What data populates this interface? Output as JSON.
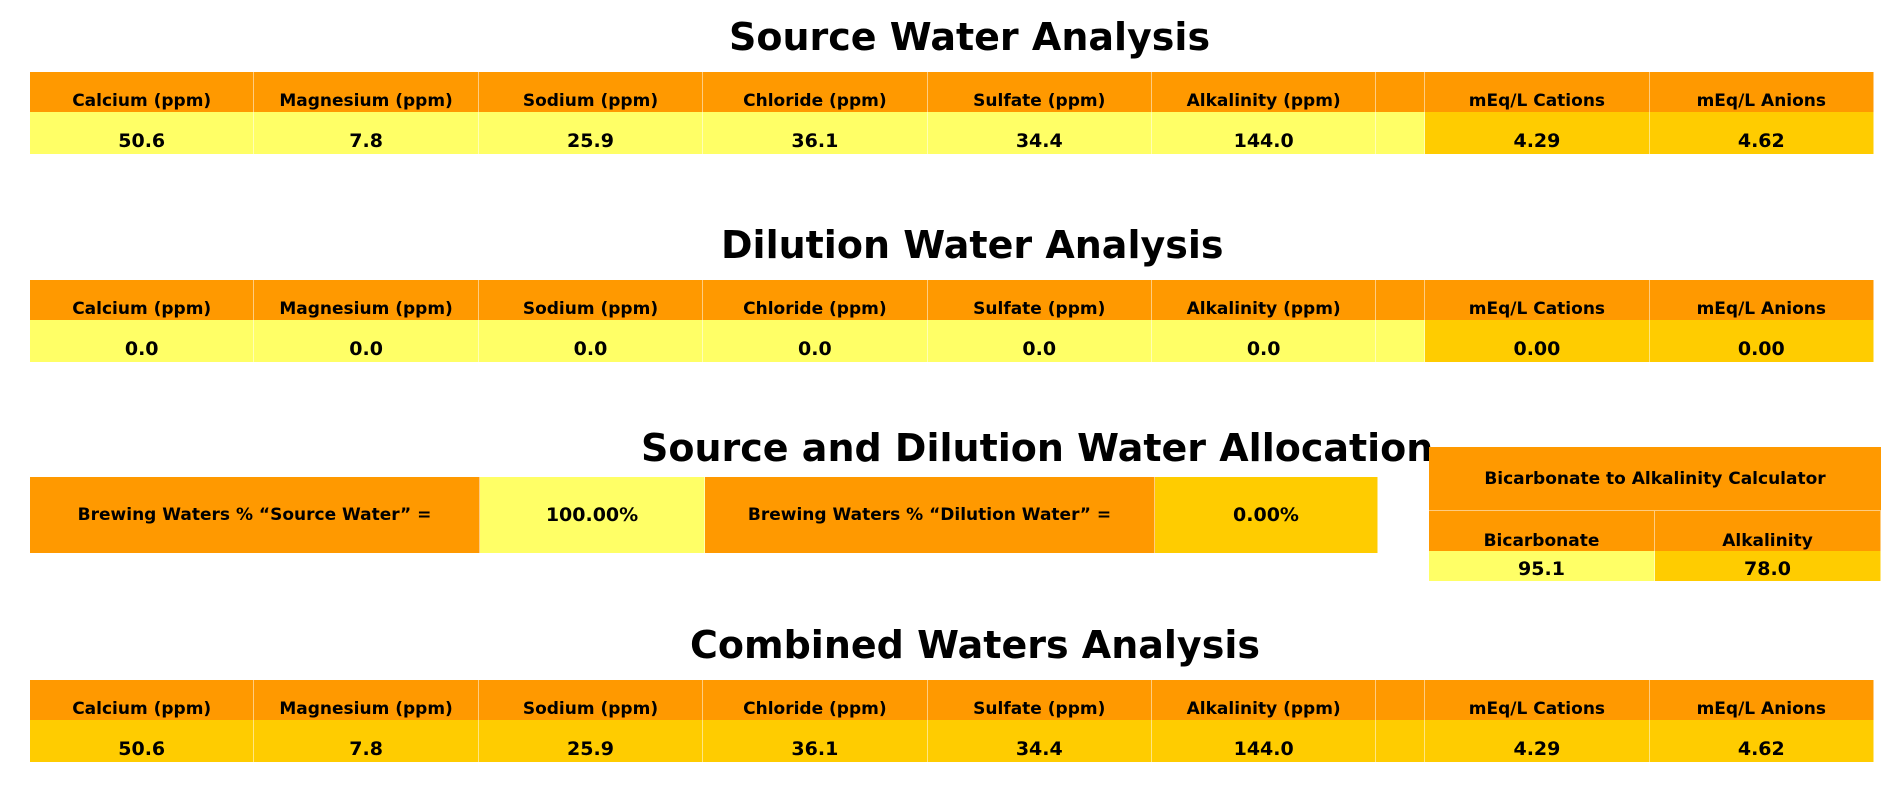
{
  "source": {
    "title": "Source Water Analysis",
    "headers": [
      "Calcium (ppm)",
      "Magnesium (ppm)",
      "Sodium (ppm)",
      "Chloride (ppm)",
      "Sulfate (ppm)",
      "Alkalinity (ppm)",
      "",
      "mEq/L Cations",
      "mEq/L Anions"
    ],
    "values": [
      "50.6",
      "7.8",
      "25.9",
      "36.1",
      "34.4",
      "144.0",
      "",
      "4.29",
      "4.62"
    ]
  },
  "dilution": {
    "title": "Dilution Water Analysis",
    "headers": [
      "Calcium (ppm)",
      "Magnesium (ppm)",
      "Sodium (ppm)",
      "Chloride (ppm)",
      "Sulfate (ppm)",
      "Alkalinity (ppm)",
      "",
      "mEq/L Cations",
      "mEq/L Anions"
    ],
    "values": [
      "0.0",
      "0.0",
      "0.0",
      "0.0",
      "0.0",
      "0.0",
      "",
      "0.00",
      "0.00"
    ]
  },
  "allocation": {
    "title": "Source and Dilution Water Allocation",
    "source_label": "Brewing Waters % “Source Water” =",
    "source_value": "100.00%",
    "dilution_label": "Brewing Waters % “Dilution Water” =",
    "dilution_value": "0.00%"
  },
  "calculator": {
    "title": "Bicarbonate to Alkalinity Calculator",
    "headers": [
      "Bicarbonate",
      "Alkalinity"
    ],
    "values": [
      "95.1",
      "78.0"
    ]
  },
  "combined": {
    "title": "Combined Waters Analysis",
    "headers": [
      "Calcium (ppm)",
      "Magnesium (ppm)",
      "Sodium (ppm)",
      "Chloride (ppm)",
      "Sulfate (ppm)",
      "Alkalinity (ppm)",
      "",
      "mEq/L Cations",
      "mEq/L Anions"
    ],
    "values": [
      "50.6",
      "7.8",
      "25.9",
      "36.1",
      "34.4",
      "144.0",
      "",
      "4.29",
      "4.62"
    ]
  },
  "colors": {
    "header_orange": "#FF9900",
    "input_yellow": "#FFFF66",
    "computed_gold": "#FFCC00"
  }
}
